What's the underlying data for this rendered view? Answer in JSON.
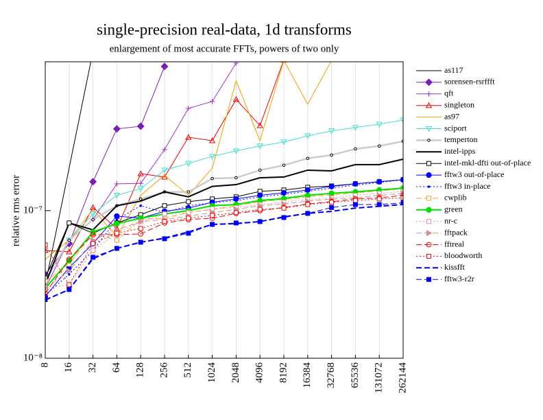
{
  "chart_data": {
    "type": "line",
    "title": "single-precision real-data, 1d transforms",
    "subtitle": "enlargement of most accurate FFTs, powers of two only",
    "y_label": "relative rms error",
    "y_log": true,
    "grid": true,
    "legend": "right",
    "categories": [
      "8",
      "16",
      "32",
      "64",
      "128",
      "256",
      "512",
      "1024",
      "2048",
      "4096",
      "8192",
      "16384",
      "32768",
      "65536",
      "131072",
      "262144"
    ],
    "ylim": [
      1e-08,
      1.02e-06
    ],
    "yticks": [
      {
        "value": 1e-08,
        "label": "10⁻⁸"
      },
      {
        "value": 1e-07,
        "label": "10⁻⁷"
      }
    ],
    "series": [
      {
        "name": "as117",
        "color": "#000000",
        "marker": "none",
        "dash": "solid",
        "width": 1,
        "values": [
          3.15e-08,
          1.94e-07,
          1.2e-06,
          null,
          null,
          null,
          null,
          null,
          null,
          null,
          null,
          null,
          null,
          null,
          null,
          null
        ]
      },
      {
        "name": "sorensen-rsrffft",
        "color": "#7a1fb5",
        "marker": "diamond",
        "dash": "solid",
        "width": 1,
        "values": [
          3.7e-08,
          5.98e-08,
          1.57e-07,
          3.58e-07,
          3.73e-07,
          9.48e-07,
          null,
          null,
          null,
          null,
          null,
          null,
          null,
          null,
          null,
          null
        ]
      },
      {
        "name": "qft",
        "color": "#a030d0",
        "marker": "plus",
        "dash": "solid",
        "width": 1,
        "values": [
          2.98e-08,
          6.3e-08,
          8.7e-08,
          1.52e-07,
          1.53e-07,
          2.59e-07,
          4.93e-07,
          5.49e-07,
          1e-06,
          null,
          null,
          null,
          null,
          null,
          null,
          null
        ]
      },
      {
        "name": "singleton",
        "color": "#ee0000",
        "marker": "triangle",
        "dash": "solid",
        "width": 1,
        "values": [
          5.37e-08,
          5.26e-08,
          1.05e-07,
          7.57e-08,
          1.78e-07,
          1.69e-07,
          3.14e-07,
          2.98e-07,
          5.67e-07,
          3.77e-07,
          1.05e-06,
          null,
          null,
          null,
          null,
          null
        ]
      },
      {
        "name": "as97",
        "color": "#f0a000",
        "marker": "none",
        "dash": "solid",
        "width": 1,
        "values": [
          4.68e-08,
          6.3e-08,
          1.02e-07,
          6.66e-08,
          1.27e-07,
          1.74e-07,
          1.27e-07,
          1.94e-07,
          7.57e-07,
          2.98e-07,
          1.04e-06,
          5.26e-07,
          1.04e-06,
          null,
          null,
          null
        ]
      },
      {
        "name": "sciport",
        "color": "#40e0d0",
        "marker": "triangle-down",
        "dash": "solid",
        "width": 1,
        "values": [
          3.32e-08,
          6.3e-08,
          9.5e-08,
          1.27e-07,
          1.41e-07,
          1.88e-07,
          2.09e-07,
          2.33e-07,
          2.54e-07,
          2.74e-07,
          2.92e-07,
          3.21e-07,
          3.47e-07,
          3.66e-07,
          3.85e-07,
          4.11e-07
        ]
      },
      {
        "name": "temperton",
        "color": "#cccccc",
        "marker_color": "#000000",
        "marker": "small-circle",
        "dash": "solid",
        "width": 2.5,
        "values": [
          3.32e-08,
          6.3e-08,
          8.7e-08,
          1.08e-07,
          1.2e-07,
          1.34e-07,
          1.34e-07,
          1.65e-07,
          1.67e-07,
          1.88e-07,
          2.03e-07,
          2.26e-07,
          2.38e-07,
          2.62e-07,
          2.74e-07,
          2.95e-07
        ]
      },
      {
        "name": "intel-ipps",
        "color": "#000000",
        "marker": "none",
        "dash": "solid",
        "width": 2,
        "values": [
          3.15e-08,
          8.25e-08,
          7.41e-08,
          1.08e-07,
          1.16e-07,
          1.34e-07,
          1.24e-07,
          1.46e-07,
          1.5e-07,
          1.67e-07,
          1.69e-07,
          1.88e-07,
          1.86e-07,
          2.05e-07,
          2.05e-07,
          2.23e-07
        ]
      },
      {
        "name": "intel-mkl-dfti out-of-place",
        "color": "#000000",
        "marker": "square-open",
        "dash": "solid",
        "width": 1,
        "values": [
          3.5e-08,
          8.25e-08,
          7.03e-08,
          8.25e-08,
          9.38e-08,
          1.08e-07,
          1.15e-07,
          1.2e-07,
          1.24e-07,
          1.35e-07,
          1.38e-07,
          1.44e-07,
          1.47e-07,
          1.52e-07,
          1.57e-07,
          1.62e-07
        ]
      },
      {
        "name": "fftw3 out-of-place",
        "color": "#0000ff",
        "marker": "circle",
        "dash": "solid",
        "width": 1,
        "values": [
          2.62e-08,
          4.11e-08,
          5.98e-08,
          9.18e-08,
          8.89e-08,
          9.89e-08,
          1.04e-07,
          1.14e-07,
          1.2e-07,
          1.27e-07,
          1.32e-07,
          1.38e-07,
          1.46e-07,
          1.52e-07,
          1.57e-07,
          1.62e-07
        ]
      },
      {
        "name": "fftw3 in-place",
        "color": "#0000ff",
        "marker": "dot",
        "dash": "dotted",
        "width": 1,
        "values": [
          2.68e-08,
          3.7e-08,
          5.37e-08,
          8.7e-08,
          1.08e-07,
          9.7e-08,
          1.08e-07,
          1.13e-07,
          1.17e-07,
          1.24e-07,
          1.29e-07,
          1.35e-07,
          1.42e-07,
          1.49e-07,
          1.55e-07,
          1.62e-07
        ]
      },
      {
        "name": "cwplib",
        "color": "#f0a030",
        "marker": "square-open",
        "dash": "dashed",
        "width": 1,
        "values": [
          3.32e-08,
          4.34e-08,
          7.03e-08,
          6.3e-08,
          8.7e-08,
          8.89e-08,
          9.7e-08,
          1.02e-07,
          1.08e-07,
          1.15e-07,
          1.19e-07,
          1.24e-07,
          1.28e-07,
          1.32e-07,
          1.36e-07,
          1.41e-07
        ]
      },
      {
        "name": "green",
        "color": "#00e000",
        "marker": "circle",
        "dash": "solid",
        "width": 2,
        "values": [
          2.98e-08,
          4.58e-08,
          7.17e-08,
          8.16e-08,
          8.89e-08,
          9.5e-08,
          1e-07,
          1.08e-07,
          1.1e-07,
          1.17e-07,
          1.21e-07,
          1.27e-07,
          1.31e-07,
          1.34e-07,
          1.38e-07,
          1.42e-07
        ]
      },
      {
        "name": "nr-c",
        "color": "#e89090",
        "marker": "square-open",
        "dash": "dotted",
        "width": 1,
        "values": [
          2.98e-08,
          3.15e-08,
          5.37e-08,
          7.03e-08,
          8.43e-08,
          9.5e-08,
          9.7e-08,
          1.03e-07,
          1.05e-07,
          1.1e-07,
          1.14e-07,
          1.19e-07,
          1.22e-07,
          1.27e-07,
          1.31e-07,
          1.35e-07
        ]
      },
      {
        "name": "fftpack",
        "color": "#d09090",
        "marker": "triangle-right",
        "dash": "dashed",
        "width": 1,
        "values": [
          2.98e-08,
          3.9e-08,
          6.3e-08,
          7.41e-08,
          8.43e-08,
          8.7e-08,
          9.18e-08,
          9.7e-08,
          1.02e-07,
          1.08e-07,
          1.11e-07,
          1.16e-07,
          1.2e-07,
          1.22e-07,
          1.27e-07,
          1.31e-07
        ]
      },
      {
        "name": "fftreal",
        "color": "#ee0000",
        "marker": "circle-open",
        "dash": "dashed",
        "width": 1,
        "values": [
          2.74e-08,
          4.68e-08,
          6.87e-08,
          6.87e-08,
          6.95e-08,
          8.25e-08,
          8.7e-08,
          8.89e-08,
          9.58e-08,
          1e-07,
          1.05e-07,
          1.11e-07,
          1.15e-07,
          1.2e-07,
          1.22e-07,
          1.27e-07
        ]
      },
      {
        "name": "bloodworth",
        "color": "#ee0000",
        "marker": "square-open",
        "dash": "dotted",
        "width": 1,
        "values": [
          5.85e-08,
          3.15e-08,
          5.98e-08,
          7.03e-08,
          7.57e-08,
          8.43e-08,
          8.89e-08,
          9.28e-08,
          9.7e-08,
          1.02e-07,
          1.04e-07,
          1.1e-07,
          1.14e-07,
          1.17e-07,
          1.2e-07,
          1.22e-07
        ]
      },
      {
        "name": "kissfft",
        "color": "#0000ee",
        "marker": "none",
        "dash": "dashed",
        "width": 2,
        "values": [
          2.48e-08,
          2.92e-08,
          4.72e-08,
          5.55e-08,
          6.11e-08,
          6.52e-08,
          7.17e-08,
          8.07e-08,
          8.16e-08,
          8.43e-08,
          9.08e-08,
          9.58e-08,
          9.89e-08,
          1.04e-07,
          1.07e-07,
          1.1e-07
        ]
      },
      {
        "name": "fftw3-r2r",
        "color": "#0000ee",
        "marker": "square",
        "dash": "dashed",
        "width": 1,
        "values": [
          2.5e-08,
          2.92e-08,
          4.83e-08,
          5.55e-08,
          6.11e-08,
          6.45e-08,
          7.03e-08,
          8.07e-08,
          8.25e-08,
          8.43e-08,
          8.98e-08,
          9.58e-08,
          1.05e-07,
          1.1e-07,
          1.1e-07,
          1.13e-07
        ]
      }
    ]
  }
}
